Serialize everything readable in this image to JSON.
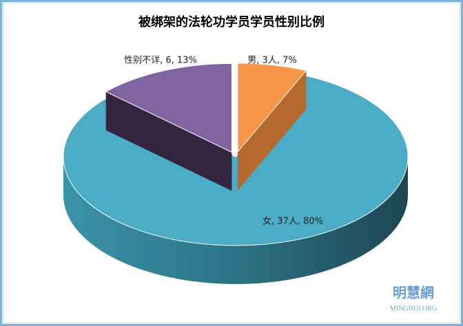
{
  "chart_data": {
    "type": "pie3d",
    "title": "被绑架的法轮功学员学员性别比例",
    "values": [
      3,
      37,
      6
    ],
    "value_labels": [
      "男, 3人, 7%",
      "女, 37人, 80%",
      "性别不详, 6, 13%"
    ],
    "colors": [
      "#f79646",
      "#4bacc6",
      "#8064a2"
    ],
    "side_colors": [
      "#b5692c",
      "#2e7b90",
      "#33243f"
    ],
    "exploded": [
      true,
      false,
      true
    ]
  },
  "watermark": {
    "name": "明慧網",
    "site": "MINGHUI.ORG"
  }
}
